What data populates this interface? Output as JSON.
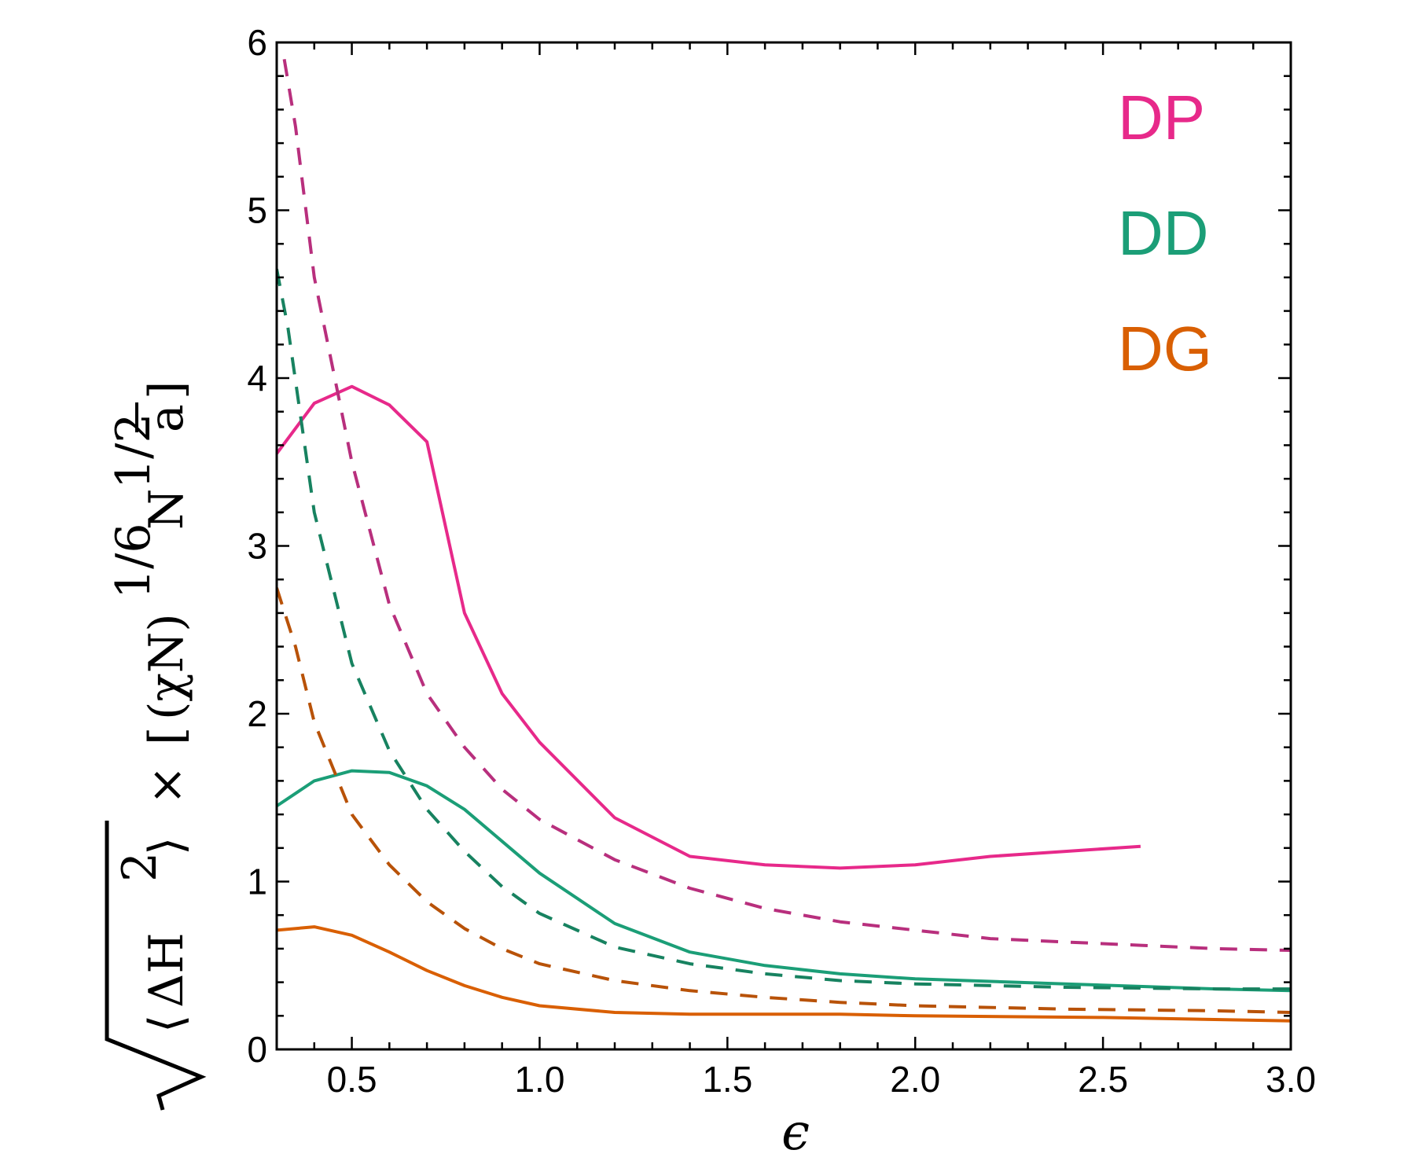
{
  "chart_data": {
    "type": "line",
    "title": "",
    "xlabel": "ϵ",
    "ylabel": {
      "delta_h": "ΔH",
      "sq": "2",
      "times": "×",
      "chi_n": "(χN)",
      "exp_16": "1/6",
      "n": "N",
      "exp_12": "1/2",
      "abar": "a"
    },
    "xlim": [
      0.3,
      3.0
    ],
    "ylim": [
      0,
      6
    ],
    "xticks": [
      {
        "value": 0.5,
        "label": "0.5"
      },
      {
        "value": 1.0,
        "label": "1.0"
      },
      {
        "value": 1.5,
        "label": "1.5"
      },
      {
        "value": 2.0,
        "label": "2.0"
      },
      {
        "value": 2.5,
        "label": "2.5"
      },
      {
        "value": 3.0,
        "label": "3.0"
      }
    ],
    "yticks": [
      {
        "value": 0,
        "label": "0"
      },
      {
        "value": 1,
        "label": "1"
      },
      {
        "value": 2,
        "label": "2"
      },
      {
        "value": 3,
        "label": "3"
      },
      {
        "value": 4,
        "label": "4"
      },
      {
        "value": 5,
        "label": "5"
      },
      {
        "value": 6,
        "label": "6"
      }
    ],
    "x_minor_step": 0.1,
    "y_minor_step": 0.2,
    "legend": [
      {
        "label": "DP",
        "color": "#e7298a"
      },
      {
        "label": "DD",
        "color": "#1b9e77"
      },
      {
        "label": "DG",
        "color": "#d95f02"
      }
    ],
    "series": [
      {
        "name": "DP",
        "style": "solid",
        "color": "#e7298a",
        "points": [
          [
            0.3,
            3.55
          ],
          [
            0.4,
            3.85
          ],
          [
            0.5,
            3.95
          ],
          [
            0.6,
            3.84
          ],
          [
            0.7,
            3.62
          ],
          [
            0.8,
            2.6
          ],
          [
            0.9,
            2.12
          ],
          [
            1.0,
            1.83
          ],
          [
            1.2,
            1.38
          ],
          [
            1.4,
            1.15
          ],
          [
            1.6,
            1.1
          ],
          [
            1.8,
            1.08
          ],
          [
            2.0,
            1.1
          ],
          [
            2.2,
            1.15
          ],
          [
            2.4,
            1.18
          ],
          [
            2.6,
            1.21
          ]
        ]
      },
      {
        "name": "DP",
        "style": "dashed",
        "color": "#b82f7d",
        "points": [
          [
            0.32,
            5.9
          ],
          [
            0.35,
            5.5
          ],
          [
            0.4,
            4.6
          ],
          [
            0.5,
            3.5
          ],
          [
            0.6,
            2.65
          ],
          [
            0.7,
            2.12
          ],
          [
            0.8,
            1.8
          ],
          [
            0.9,
            1.55
          ],
          [
            1.0,
            1.37
          ],
          [
            1.2,
            1.13
          ],
          [
            1.4,
            0.96
          ],
          [
            1.6,
            0.84
          ],
          [
            1.8,
            0.76
          ],
          [
            2.0,
            0.71
          ],
          [
            2.2,
            0.66
          ],
          [
            2.4,
            0.64
          ],
          [
            2.6,
            0.62
          ],
          [
            2.8,
            0.6
          ],
          [
            3.0,
            0.59
          ]
        ]
      },
      {
        "name": "DD",
        "style": "solid",
        "color": "#1b9e77",
        "points": [
          [
            0.3,
            1.45
          ],
          [
            0.4,
            1.6
          ],
          [
            0.5,
            1.66
          ],
          [
            0.6,
            1.65
          ],
          [
            0.7,
            1.57
          ],
          [
            0.8,
            1.43
          ],
          [
            0.9,
            1.24
          ],
          [
            1.0,
            1.05
          ],
          [
            1.2,
            0.75
          ],
          [
            1.4,
            0.58
          ],
          [
            1.6,
            0.5
          ],
          [
            1.8,
            0.45
          ],
          [
            2.0,
            0.42
          ],
          [
            2.4,
            0.39
          ],
          [
            2.8,
            0.36
          ],
          [
            3.0,
            0.35
          ]
        ]
      },
      {
        "name": "DD",
        "style": "dashed",
        "color": "#178260",
        "points": [
          [
            0.3,
            4.65
          ],
          [
            0.33,
            4.3
          ],
          [
            0.4,
            3.2
          ],
          [
            0.5,
            2.3
          ],
          [
            0.6,
            1.78
          ],
          [
            0.7,
            1.43
          ],
          [
            0.8,
            1.18
          ],
          [
            0.9,
            0.97
          ],
          [
            1.0,
            0.81
          ],
          [
            1.2,
            0.61
          ],
          [
            1.4,
            0.51
          ],
          [
            1.6,
            0.45
          ],
          [
            1.8,
            0.41
          ],
          [
            2.0,
            0.39
          ],
          [
            2.4,
            0.37
          ],
          [
            2.8,
            0.36
          ],
          [
            3.0,
            0.36
          ]
        ]
      },
      {
        "name": "DG",
        "style": "solid",
        "color": "#d95f02",
        "points": [
          [
            0.3,
            0.71
          ],
          [
            0.4,
            0.73
          ],
          [
            0.5,
            0.68
          ],
          [
            0.6,
            0.58
          ],
          [
            0.7,
            0.47
          ],
          [
            0.8,
            0.38
          ],
          [
            0.9,
            0.31
          ],
          [
            1.0,
            0.26
          ],
          [
            1.2,
            0.22
          ],
          [
            1.4,
            0.21
          ],
          [
            1.6,
            0.21
          ],
          [
            1.8,
            0.21
          ],
          [
            2.0,
            0.2
          ],
          [
            2.5,
            0.19
          ],
          [
            3.0,
            0.17
          ]
        ]
      },
      {
        "name": "DG",
        "style": "dashed",
        "color": "#b85208",
        "points": [
          [
            0.3,
            2.75
          ],
          [
            0.35,
            2.4
          ],
          [
            0.4,
            1.95
          ],
          [
            0.5,
            1.4
          ],
          [
            0.6,
            1.1
          ],
          [
            0.7,
            0.88
          ],
          [
            0.8,
            0.72
          ],
          [
            0.9,
            0.6
          ],
          [
            1.0,
            0.51
          ],
          [
            1.2,
            0.41
          ],
          [
            1.4,
            0.35
          ],
          [
            1.6,
            0.31
          ],
          [
            1.8,
            0.28
          ],
          [
            2.0,
            0.26
          ],
          [
            2.4,
            0.24
          ],
          [
            2.8,
            0.23
          ],
          [
            3.0,
            0.22
          ]
        ]
      }
    ]
  }
}
